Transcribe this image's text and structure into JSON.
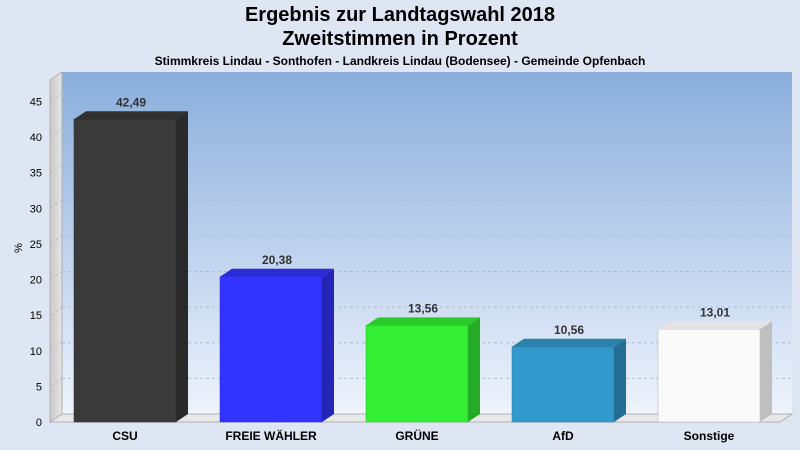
{
  "title": "Ergebnis zur Landtagswahl 2018",
  "subtitle": "Zweitstimmen in Prozent",
  "caption": "Stimmkreis Lindau - Sonthofen - Landkreis Lindau (Bodensee) - Gemeinde Opfenbach",
  "chart_data": {
    "type": "bar",
    "title": "Ergebnis zur Landtagswahl 2018",
    "subtitle": "Zweitstimmen in Prozent",
    "xlabel": "",
    "ylabel": "%",
    "ylim": [
      0,
      48
    ],
    "yticks": [
      0,
      5,
      10,
      15,
      20,
      25,
      30,
      35,
      40,
      45
    ],
    "grid": true,
    "categories": [
      "CSU",
      "FREIE WÄHLER",
      "GRÜNE",
      "AfD",
      "Sonstige"
    ],
    "values": [
      42.49,
      20.38,
      13.56,
      10.56,
      13.01
    ],
    "value_labels": [
      "42,49",
      "20,38",
      "13,56",
      "10,56",
      "13,01"
    ],
    "colors": [
      "#3a3a3a",
      "#3333ff",
      "#33ee33",
      "#3399cc",
      "#ffffff"
    ]
  }
}
